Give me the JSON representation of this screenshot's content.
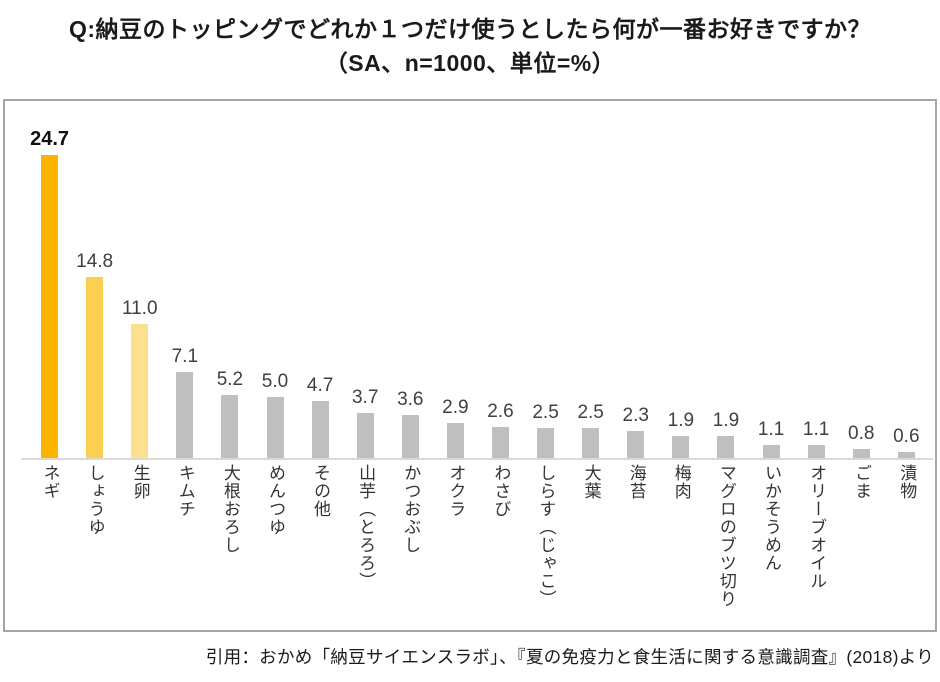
{
  "header": {
    "title_line1": "Q:納豆のトッピングでどれか１つだけ使うとしたら何が一番お好きですか？",
    "title_line2": "（SA、n=1000、単位=%）"
  },
  "footer": {
    "citation": "引用：おかめ「納豆サイエンスラボ」、『夏の免疫力と食生活に関する意識調査』(2018)より"
  },
  "chart_data": {
    "type": "bar",
    "title": "Q:納豆のトッピングでどれか１つだけ使うとしたら何が一番お好きですか？（SA、n=1000、単位=%）",
    "categories": [
      "ネギ",
      "しょうゆ",
      "生卵",
      "キムチ",
      "大根おろし",
      "めんつゆ",
      "その他",
      "山芋（とろろ）",
      "かつおぶし",
      "オクラ",
      "わさび",
      "しらす（じゃこ）",
      "大葉",
      "海苔",
      "梅肉",
      "マグロのブツ切り",
      "いかそうめん",
      "オリーブオイル",
      "ごま",
      "漬物"
    ],
    "values": [
      24.7,
      14.8,
      11.0,
      7.1,
      5.2,
      5.0,
      4.7,
      3.7,
      3.6,
      2.9,
      2.6,
      2.5,
      2.5,
      2.3,
      1.9,
      1.9,
      1.1,
      1.1,
      0.8,
      0.6
    ],
    "value_labels": [
      "24.7",
      "14.8",
      "11.0",
      "7.1",
      "5.2",
      "5.0",
      "4.7",
      "3.7",
      "3.6",
      "2.9",
      "2.6",
      "2.5",
      "2.5",
      "2.3",
      "1.9",
      "1.9",
      "1.1",
      "1.1",
      "0.8",
      "0.6"
    ],
    "bar_colors": [
      "#FBB500",
      "#FCCE52",
      "#FBE18E",
      "#BFBFBF",
      "#BFBFBF",
      "#BFBFBF",
      "#BFBFBF",
      "#BFBFBF",
      "#BFBFBF",
      "#BFBFBF",
      "#BFBFBF",
      "#BFBFBF",
      "#BFBFBF",
      "#BFBFBF",
      "#BFBFBF",
      "#BFBFBF",
      "#BFBFBF",
      "#BFBFBF",
      "#BFBFBF",
      "#BFBFBF"
    ],
    "emphasized_value_index": 0,
    "xlabel": "",
    "ylabel": "",
    "ylim": [
      0,
      27
    ],
    "grid": false,
    "legend": null,
    "colors": {
      "highlight_1": "#FBB500",
      "highlight_2": "#FCCE52",
      "highlight_3": "#FBE18E",
      "default_bar": "#BFBFBF",
      "axis_line": "#D9D9D9",
      "chart_border": "#A6A6A6"
    }
  }
}
